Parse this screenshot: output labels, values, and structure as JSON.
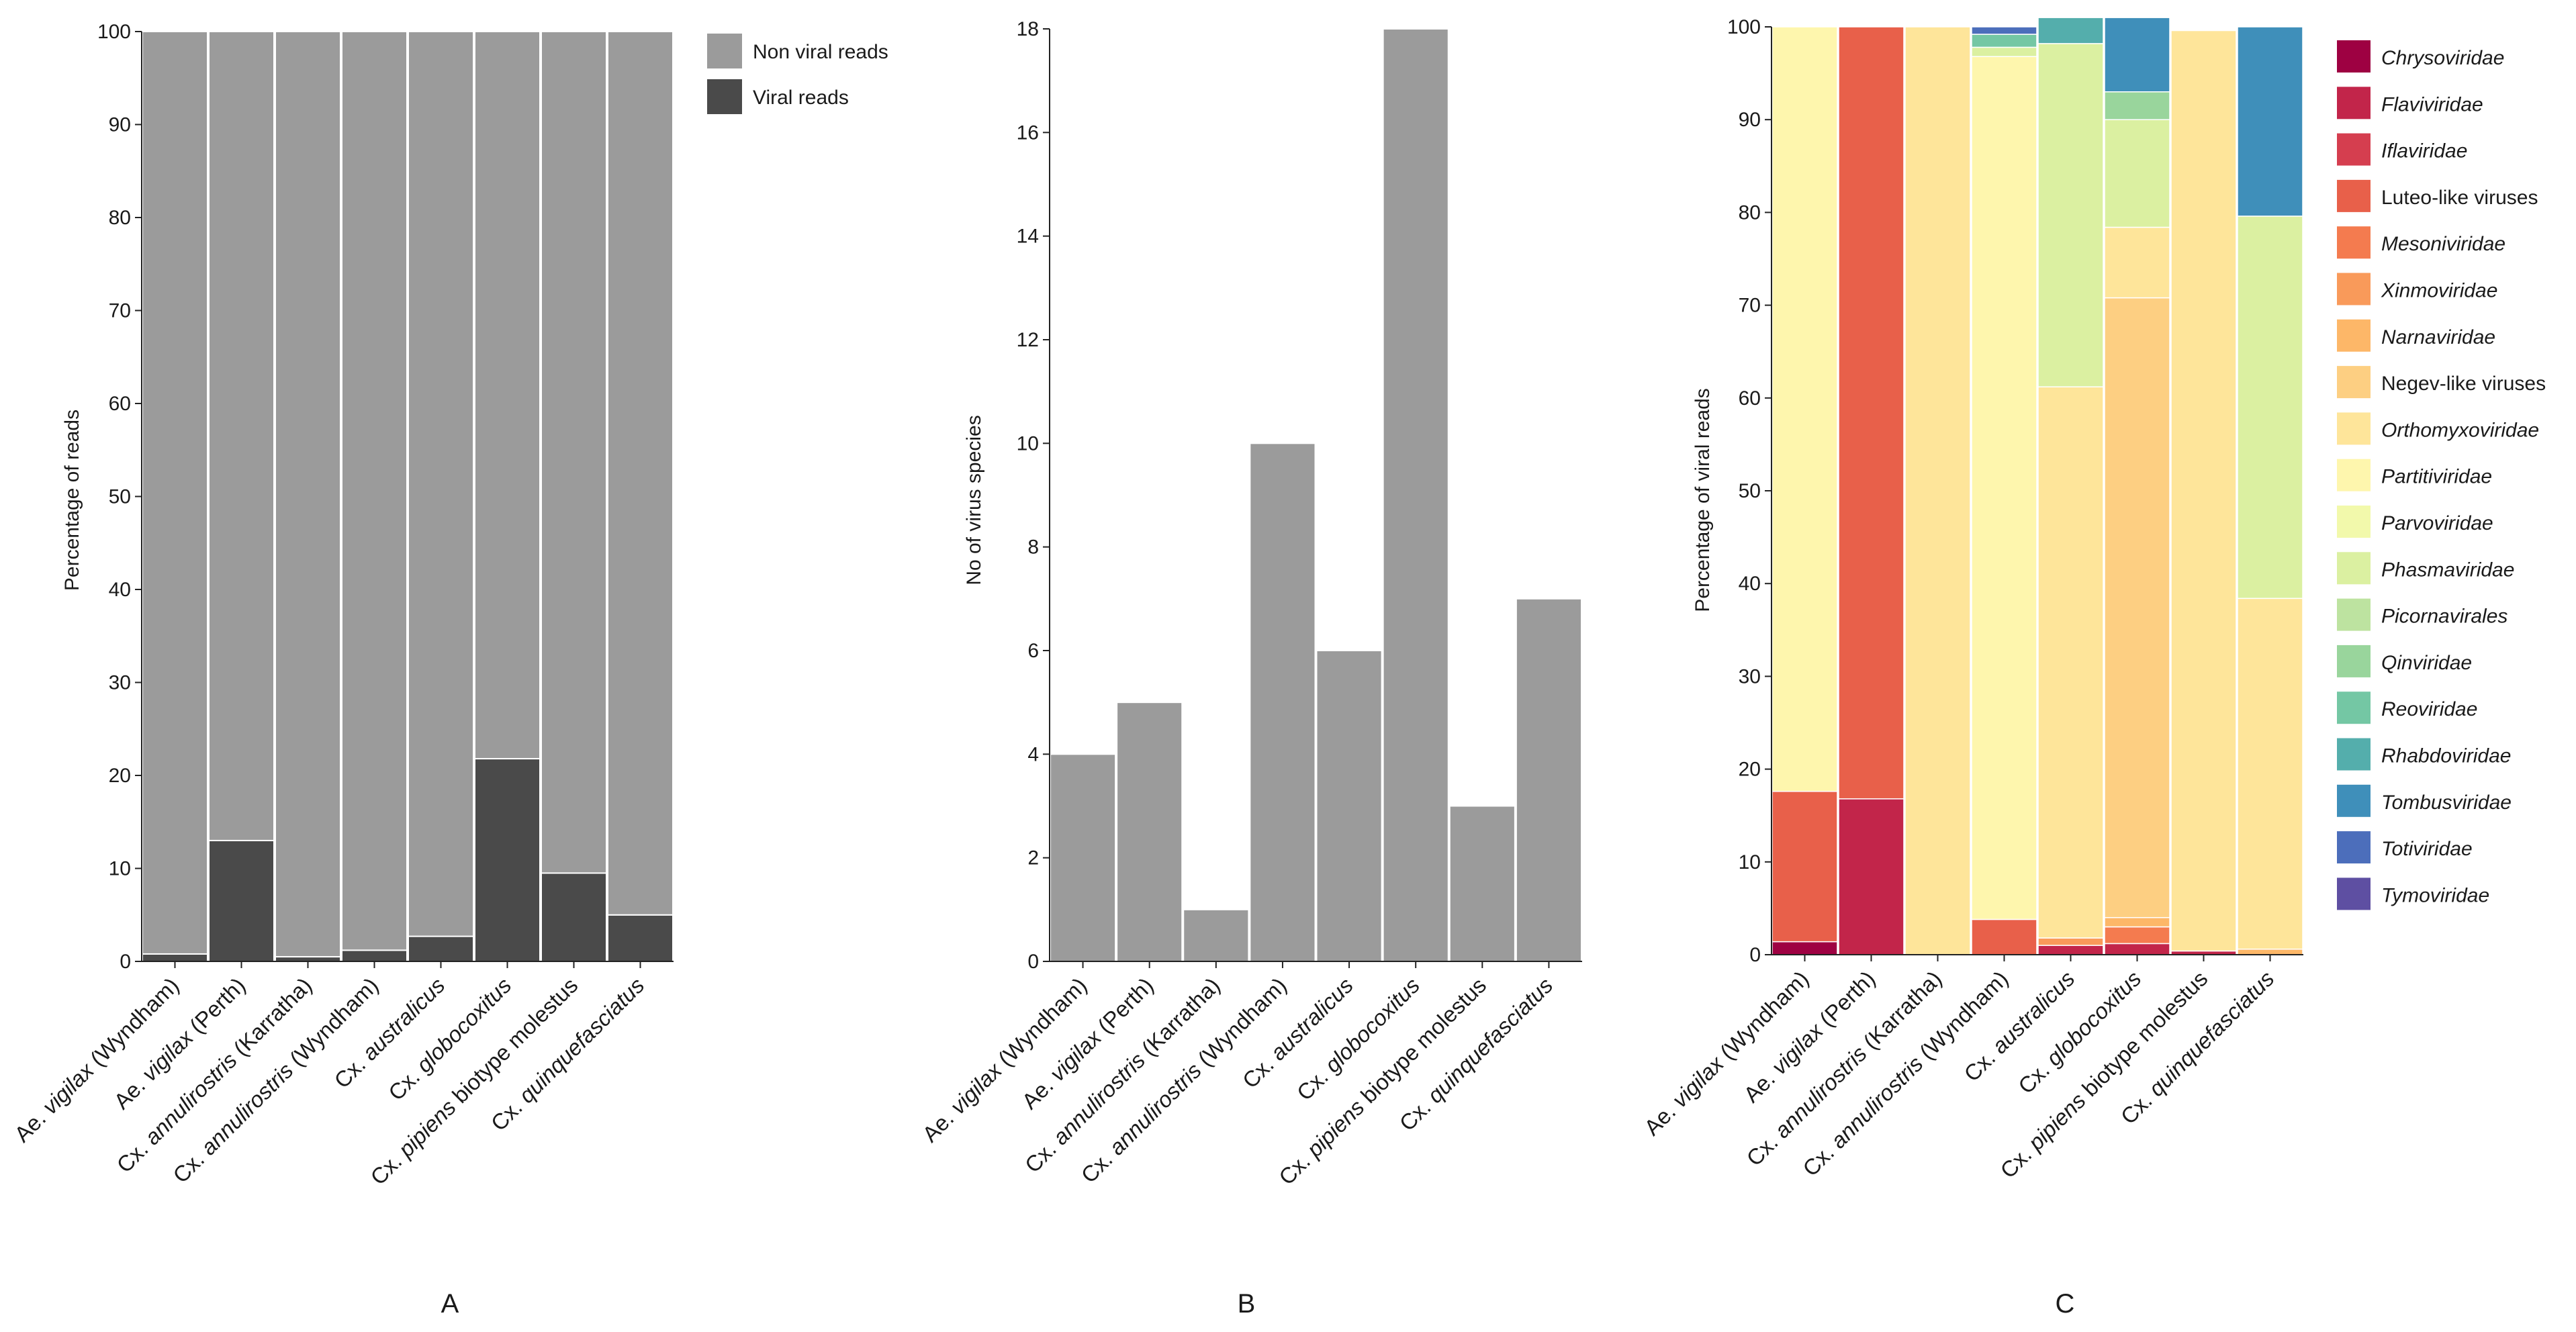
{
  "chart_data": [
    {
      "type": "bar",
      "stacked": true,
      "panel": "A",
      "ylabel": "Percentage of reads",
      "ylim": [
        0,
        100
      ],
      "yticks": [
        0,
        10,
        20,
        30,
        40,
        50,
        60,
        70,
        80,
        90,
        100
      ],
      "categories": [
        {
          "pre": "Ae. ",
          "em": "vigilax",
          "post": " (Wyndham)"
        },
        {
          "pre": "Ae. ",
          "em": "vigilax",
          "post": " (Perth)"
        },
        {
          "pre": "Cx. ",
          "em": "annulirostris",
          "post": " (Karratha)"
        },
        {
          "pre": "Cx. ",
          "em": "annulirostris",
          "post": " (Wyndham)"
        },
        {
          "pre": "Cx. ",
          "em": "australicus",
          "post": ""
        },
        {
          "pre": "Cx. ",
          "em": "globocoxitus",
          "post": ""
        },
        {
          "pre": "Cx. ",
          "em": "pipiens",
          "post": " biotype molestus"
        },
        {
          "pre": "Cx. ",
          "em": "quinquefasciatus",
          "post": ""
        }
      ],
      "series": [
        {
          "name": "Viral reads",
          "color": "#4a4a4a",
          "values": [
            0.8,
            13.0,
            0.5,
            1.2,
            2.7,
            21.8,
            9.5,
            5.0
          ]
        },
        {
          "name": "Non viral reads",
          "color": "#9b9b9b",
          "values": [
            99.2,
            87.0,
            99.5,
            98.8,
            97.3,
            78.2,
            90.5,
            95.0
          ]
        }
      ],
      "legend_order": [
        "Non viral reads",
        "Viral reads"
      ],
      "legend_position": "right"
    },
    {
      "type": "bar",
      "panel": "B",
      "ylabel": "No of virus species",
      "ylim": [
        0,
        18
      ],
      "yticks": [
        0,
        2,
        4,
        6,
        8,
        10,
        12,
        14,
        16,
        18
      ],
      "color": "#9b9b9b",
      "categories": [
        {
          "pre": "Ae. ",
          "em": "vigilax",
          "post": " (Wyndham)"
        },
        {
          "pre": "Ae. ",
          "em": "vigilax",
          "post": " (Perth)"
        },
        {
          "pre": "Cx. ",
          "em": "annulirostris",
          "post": " (Karratha)"
        },
        {
          "pre": "Cx. ",
          "em": "annulirostris",
          "post": " (Wyndham)"
        },
        {
          "pre": "Cx. ",
          "em": "australicus",
          "post": ""
        },
        {
          "pre": "Cx. ",
          "em": "globocoxitus",
          "post": ""
        },
        {
          "pre": "Cx. ",
          "em": "pipiens",
          "post": " biotype molestus"
        },
        {
          "pre": "Cx. ",
          "em": "quinquefasciatus",
          "post": ""
        }
      ],
      "values": [
        4,
        5,
        1,
        10,
        6,
        18,
        3,
        7
      ]
    },
    {
      "type": "bar",
      "stacked": true,
      "panel": "C",
      "ylabel": "Percentage of viral reads",
      "ylim": [
        0,
        100
      ],
      "yticks": [
        0,
        10,
        20,
        30,
        40,
        50,
        60,
        70,
        80,
        90,
        100
      ],
      "categories": [
        {
          "pre": "Ae. ",
          "em": "vigilax",
          "post": " (Wyndham)"
        },
        {
          "pre": "Ae. ",
          "em": "vigilax",
          "post": " (Perth)"
        },
        {
          "pre": "Cx. ",
          "em": "annulirostris",
          "post": " (Karratha)"
        },
        {
          "pre": "Cx. ",
          "em": "annulirostris",
          "post": " (Wyndham)"
        },
        {
          "pre": "Cx. ",
          "em": "australicus",
          "post": ""
        },
        {
          "pre": "Cx. ",
          "em": "globocoxitus",
          "post": ""
        },
        {
          "pre": "Cx. ",
          "em": "pipiens",
          "post": " biotype molestus"
        },
        {
          "pre": "Cx. ",
          "em": "quinquefasciatus",
          "post": ""
        }
      ],
      "series": [
        {
          "name": "Chrysoviridae",
          "italic": true,
          "color": "#9e0142",
          "values": [
            1.4,
            0,
            0,
            0,
            0,
            0,
            0,
            0
          ]
        },
        {
          "name": "Flaviviridae",
          "italic": true,
          "color": "#c2254a",
          "values": [
            0,
            16.8,
            0,
            0,
            1.0,
            1.2,
            0.4,
            0
          ]
        },
        {
          "name": "Iflaviridae",
          "italic": true,
          "color": "#d53e4f",
          "values": [
            0,
            0,
            0,
            0,
            0,
            0,
            0,
            0
          ]
        },
        {
          "name": "Luteo-like viruses",
          "italic": false,
          "color": "#e8604a",
          "values": [
            16.2,
            83.2,
            0,
            3.8,
            0,
            0,
            0,
            0
          ]
        },
        {
          "name": "Mesoniviridae",
          "italic": true,
          "color": "#f47b4f",
          "values": [
            0,
            0,
            0,
            0,
            0,
            1.8,
            0,
            0
          ]
        },
        {
          "name": "Xinmoviridae",
          "italic": true,
          "color": "#f99a5a",
          "values": [
            0,
            0,
            0,
            0,
            0.8,
            0,
            0,
            0
          ]
        },
        {
          "name": "Narnaviridae",
          "italic": true,
          "color": "#fdb768",
          "values": [
            0,
            0,
            0,
            0,
            0,
            1.0,
            0,
            0.6
          ]
        },
        {
          "name": "Negev-like viruses",
          "italic": false,
          "color": "#fdcf82",
          "values": [
            0,
            0,
            0,
            0,
            0,
            66.8,
            0,
            0
          ]
        },
        {
          "name": "Orthomyxoviridae",
          "italic": true,
          "color": "#fee59a",
          "values": [
            0,
            0,
            100,
            0,
            59.4,
            7.6,
            99.2,
            37.8
          ]
        },
        {
          "name": "Partitiviridae",
          "italic": true,
          "color": "#fef6ad",
          "values": [
            82.4,
            0,
            0,
            93.0,
            0,
            0,
            0,
            0
          ]
        },
        {
          "name": "Parvoviridae",
          "italic": true,
          "color": "#f2f9ab",
          "values": [
            0,
            0,
            0,
            0,
            0,
            0,
            0,
            0
          ]
        },
        {
          "name": "Phasmaviridae",
          "italic": true,
          "color": "#dbf0a1",
          "values": [
            0,
            0,
            0,
            1.0,
            37.0,
            11.6,
            0,
            41.2
          ]
        },
        {
          "name": "Picornavirales",
          "italic": true,
          "color": "#bde3a0",
          "values": [
            0,
            0,
            0,
            0,
            0,
            0,
            0,
            0
          ]
        },
        {
          "name": "Qinviridae",
          "italic": true,
          "color": "#99d59c",
          "values": [
            0,
            0,
            0,
            0,
            0,
            3.0,
            0,
            0
          ]
        },
        {
          "name": "Reoviridae",
          "italic": true,
          "color": "#74c7a4",
          "values": [
            0,
            0,
            0,
            1.4,
            0,
            0,
            0,
            0
          ]
        },
        {
          "name": "Rhabdoviridae",
          "italic": true,
          "color": "#54aeac",
          "values": [
            0,
            0,
            0,
            0,
            2.8,
            0,
            0,
            0
          ]
        },
        {
          "name": "Tombusviridae",
          "italic": true,
          "color": "#3f8fba",
          "values": [
            0,
            0,
            0,
            0,
            0,
            8.0,
            0,
            20.4
          ]
        },
        {
          "name": "Totiviridae",
          "italic": true,
          "color": "#4c6ebb",
          "values": [
            0,
            0,
            0,
            0.8,
            0,
            0,
            0,
            0
          ]
        },
        {
          "name": "Tymoviridae",
          "italic": true,
          "color": "#5e4fa2",
          "values": [
            0,
            0,
            0,
            0,
            0,
            0,
            0,
            0
          ]
        }
      ],
      "legend_position": "right"
    }
  ]
}
